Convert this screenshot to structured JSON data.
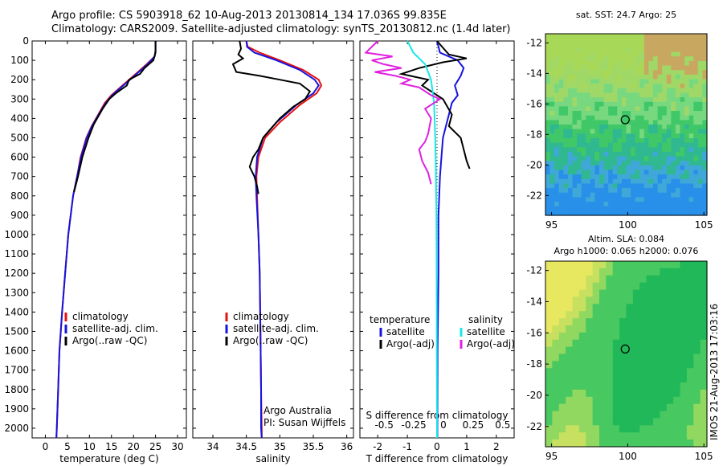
{
  "title": {
    "line1": "Argo profile: CS 5903918_62 10-Aug-2013 20130814_134 17.036S 99.835E",
    "line2": "Climatology: CARS2009. Satellite-adjusted climatology: synTS_20130812.nc (1.4d later)"
  },
  "colors": {
    "clim": "#e81010",
    "sat": "#1414e0",
    "argo": "#000000",
    "cyan": "#18e8e8",
    "magenta": "#e020e0"
  },
  "depth_ticks": [
    0,
    100,
    200,
    300,
    400,
    500,
    600,
    700,
    800,
    900,
    1000,
    1100,
    1200,
    1300,
    1400,
    1500,
    1600,
    1700,
    1800,
    1900,
    2000
  ],
  "chart_data": [
    {
      "type": "line",
      "title": "",
      "xlabel": "temperature (deg C)",
      "ylabel": "depth",
      "xlim": [
        -3,
        32
      ],
      "ylim": [
        2050,
        0
      ],
      "xticks": [
        0,
        5,
        10,
        15,
        20,
        25,
        30
      ],
      "series": [
        {
          "name": "climatology",
          "color": "#e81010",
          "x": [
            25,
            25,
            24.8,
            23,
            21,
            19,
            17,
            15,
            13.5,
            12,
            10.5,
            9.3,
            8,
            7.2,
            6.3,
            5.2,
            4.5,
            3.8,
            3.2,
            2.9,
            2.6,
            2.5
          ],
          "y": [
            0,
            50,
            80,
            120,
            160,
            200,
            240,
            280,
            320,
            380,
            440,
            500,
            600,
            700,
            800,
            1000,
            1200,
            1400,
            1600,
            1800,
            2000,
            2050
          ]
        },
        {
          "name": "satellite-adj. clim.",
          "color": "#1414e0",
          "x": [
            25,
            25,
            24.8,
            23.2,
            21.2,
            19.2,
            17.2,
            15.2,
            13.7,
            12.1,
            10.6,
            9.4,
            8.1,
            7.2,
            6.3,
            5.2,
            4.5,
            3.8,
            3.2,
            2.9,
            2.6,
            2.5
          ],
          "y": [
            0,
            50,
            80,
            120,
            160,
            200,
            240,
            280,
            320,
            380,
            440,
            500,
            600,
            700,
            800,
            1000,
            1200,
            1400,
            1600,
            1800,
            2000,
            2050
          ]
        },
        {
          "name": "Argo(..raw -QC)",
          "color": "#000000",
          "x": [
            25,
            25,
            24.5,
            22.5,
            21.5,
            19,
            18.5,
            16,
            14.5,
            13,
            11,
            9.8,
            8.4,
            7.4,
            6.5
          ],
          "y": [
            0,
            60,
            100,
            140,
            170,
            200,
            230,
            270,
            300,
            350,
            430,
            500,
            600,
            700,
            780
          ]
        }
      ],
      "legend": [
        "climatology",
        "satellite-adj. clim.",
        "Argo(..raw -QC)"
      ]
    },
    {
      "type": "line",
      "title": "",
      "xlabel": "salinity",
      "ylabel": "",
      "xlim": [
        33.7,
        36.1
      ],
      "ylim": [
        2050,
        0
      ],
      "xticks": [
        34,
        34.5,
        35,
        35.5,
        36
      ],
      "series": [
        {
          "name": "climatology",
          "color": "#e81010",
          "x": [
            34.5,
            34.52,
            34.7,
            35.0,
            35.35,
            35.58,
            35.62,
            35.55,
            35.3,
            35.0,
            34.78,
            34.68,
            34.65,
            34.66,
            34.68,
            34.7,
            34.71,
            34.72,
            34.73,
            34.73
          ],
          "y": [
            0,
            30,
            60,
            100,
            150,
            200,
            230,
            270,
            330,
            420,
            500,
            600,
            700,
            800,
            1000,
            1200,
            1500,
            1800,
            2000,
            2050
          ]
        },
        {
          "name": "satellite-adj. clim.",
          "color": "#1414e0",
          "x": [
            34.5,
            34.51,
            34.62,
            34.95,
            35.3,
            35.52,
            35.58,
            35.5,
            35.25,
            34.95,
            34.75,
            34.66,
            34.64,
            34.65,
            34.68,
            34.7,
            34.71,
            34.72,
            34.72,
            34.73
          ],
          "y": [
            0,
            30,
            60,
            100,
            150,
            200,
            230,
            270,
            330,
            420,
            500,
            600,
            700,
            800,
            1000,
            1200,
            1500,
            1800,
            2000,
            2050
          ]
        },
        {
          "name": "Argo(..raw -QC)",
          "color": "#000000",
          "x": [
            34.4,
            34.42,
            34.38,
            34.45,
            34.3,
            34.35,
            34.7,
            35.0,
            35.3,
            35.45,
            35.38,
            35.2,
            35.0,
            34.85,
            34.75,
            34.68,
            34.6,
            34.55,
            34.62,
            34.66,
            34.68
          ],
          "y": [
            0,
            40,
            70,
            90,
            120,
            160,
            180,
            200,
            220,
            260,
            300,
            340,
            400,
            460,
            500,
            560,
            600,
            650,
            700,
            750,
            790
          ]
        }
      ],
      "legend": [
        "climatology",
        "satellite-adj. clim.",
        "Argo(..raw -QC)"
      ],
      "annotation": [
        "Argo Australia",
        "PI: Susan Wijffels"
      ]
    },
    {
      "type": "line",
      "title": "",
      "xlabel": "T difference from climatology",
      "ylabel": "",
      "top_label": "S difference from climatology",
      "xlim": [
        -2.6,
        2.6
      ],
      "ylim": [
        2050,
        0
      ],
      "xticks": [
        -2,
        -1,
        0,
        1,
        2
      ],
      "xticklabels": [
        "-2",
        "-1",
        "0",
        "1",
        "2"
      ],
      "xticks_s": [
        -2,
        -1,
        0,
        1,
        2
      ],
      "xticklabels_s": [
        "-0.5",
        "-0.25",
        "0",
        "0.25",
        "0.5"
      ],
      "series": [
        {
          "name": "temperature satellite",
          "color": "#1414e0",
          "x": [
            0,
            0.1,
            0.4,
            0.7,
            0.9,
            0.8,
            0.6,
            0.7,
            0.5,
            0.4,
            0.3,
            0.2,
            0.15,
            0.1,
            0.05,
            0.05,
            0.02,
            0.01
          ],
          "y": [
            0,
            60,
            80,
            100,
            140,
            180,
            230,
            280,
            320,
            380,
            440,
            500,
            600,
            700,
            900,
            1200,
            1600,
            2050
          ]
        },
        {
          "name": "temperature Argo(-adj)",
          "color": "#000000",
          "x": [
            0,
            0.4,
            1.0,
            0.2,
            -0.6,
            -1.2,
            -0.3,
            -0.5,
            -0.2,
            0.2,
            0.5,
            0.4,
            0.8,
            0.9,
            1.0,
            1.1
          ],
          "y": [
            0,
            70,
            90,
            110,
            140,
            170,
            200,
            230,
            260,
            300,
            380,
            440,
            500,
            560,
            620,
            660
          ]
        },
        {
          "name": "salinity satellite",
          "color": "#18e8e8",
          "x": [
            -1.0,
            -0.8,
            -0.6,
            -0.4,
            -0.3,
            -0.2,
            -0.15,
            -0.1,
            -0.08,
            -0.06,
            -0.04,
            -0.02,
            -0.01,
            0
          ],
          "y": [
            0,
            60,
            90,
            120,
            160,
            200,
            260,
            320,
            400,
            500,
            650,
            900,
            1300,
            2050
          ]
        },
        {
          "name": "salinity Argo(-adj)",
          "color": "#e020e0",
          "x": [
            -2.0,
            -2.4,
            -1.5,
            -2.2,
            -1.8,
            -1.2,
            -2.1,
            -1.4,
            -0.9,
            -1.2,
            -0.6,
            -0.2,
            0.1,
            -0.4,
            -0.2,
            -0.3,
            -0.4,
            -0.6,
            -0.5,
            -0.3,
            -0.2
          ],
          "y": [
            0,
            60,
            80,
            100,
            120,
            140,
            160,
            180,
            200,
            220,
            240,
            280,
            300,
            350,
            400,
            480,
            520,
            560,
            620,
            680,
            740
          ]
        }
      ],
      "legend_left": {
        "heading": "temperature",
        "items": [
          "satellite",
          "Argo(-adj)"
        ]
      },
      "legend_right": {
        "heading": "salinity",
        "items": [
          "satellite",
          "Argo(-adj)"
        ]
      }
    },
    {
      "type": "heatmap",
      "title": "sat. SST: 24.7 Argo: 25",
      "xlim": [
        94.6,
        105.2
      ],
      "ylim": [
        -23.3,
        -11.4
      ],
      "xticks": [
        95,
        100,
        105
      ],
      "yticks": [
        -12,
        -14,
        -16,
        -18,
        -20,
        -22
      ],
      "marker": {
        "lon": 99.835,
        "lat": -17.036
      }
    },
    {
      "type": "heatmap",
      "title": "Altim. SLA: 0.084",
      "subtitle": "Argo h1000: 0.065 h2000: 0.076",
      "xlim": [
        94.6,
        105.2
      ],
      "ylim": [
        -23.3,
        -11.4
      ],
      "xticks": [
        95,
        100,
        105
      ],
      "yticks": [
        -12,
        -14,
        -16,
        -18,
        -20,
        -22
      ],
      "marker": {
        "lon": 99.835,
        "lat": -17.036
      }
    }
  ],
  "credit": "IMOS 21-Aug-2013 17:03:16"
}
